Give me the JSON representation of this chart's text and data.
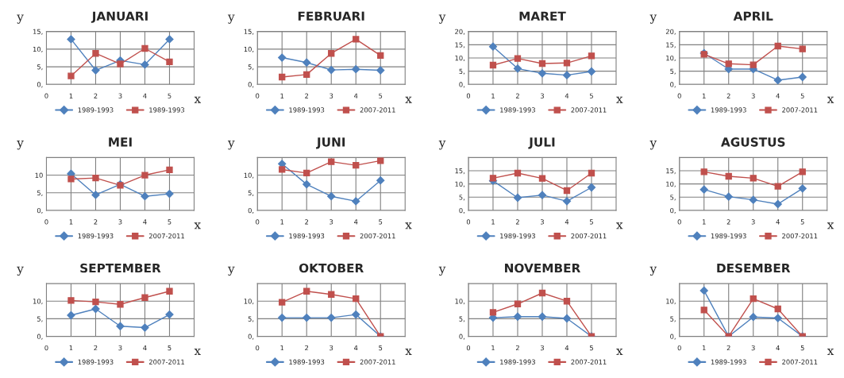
{
  "chart_data": [
    {
      "type": "line",
      "title": "JANUARI",
      "xlabel": "x",
      "ylabel": "y",
      "x": [
        1,
        2,
        3,
        4,
        5
      ],
      "xlim": [
        0,
        6
      ],
      "xticks": [
        0,
        1,
        2,
        3,
        4,
        5
      ],
      "ylim": [
        0,
        15
      ],
      "yticks": [
        {
          "value": 0,
          "label": "0,"
        },
        {
          "value": 5,
          "label": "5,"
        },
        {
          "value": 10,
          "label": "10,"
        },
        {
          "value": 15,
          "label": "15,"
        }
      ],
      "grid": true,
      "legend": "bottom",
      "series": [
        {
          "name": "1989-1993",
          "color": "#4f81bd",
          "marker": "diamond",
          "values": [
            12.8,
            4.0,
            6.8,
            5.6,
            12.8
          ]
        },
        {
          "name": "1989-1993",
          "color": "#c0504d",
          "marker": "square",
          "values": [
            2.4,
            8.8,
            5.8,
            10.2,
            6.4
          ]
        }
      ]
    },
    {
      "type": "line",
      "title": "FEBRUARI",
      "xlabel": "x",
      "ylabel": "y",
      "x": [
        1,
        2,
        3,
        4,
        5
      ],
      "xlim": [
        0,
        6
      ],
      "xticks": [
        0,
        1,
        2,
        3,
        4,
        5
      ],
      "ylim": [
        0,
        15
      ],
      "yticks": [
        {
          "value": 0,
          "label": "0,"
        },
        {
          "value": 5,
          "label": "5,"
        },
        {
          "value": 10,
          "label": "10,"
        },
        {
          "value": 15,
          "label": "15,"
        }
      ],
      "grid": true,
      "legend": "bottom",
      "series": [
        {
          "name": "1989-1993",
          "color": "#4f81bd",
          "marker": "diamond",
          "values": [
            7.6,
            6.2,
            4.1,
            4.3,
            4.0
          ]
        },
        {
          "name": "2007-2011",
          "color": "#c0504d",
          "marker": "square",
          "values": [
            2.1,
            2.8,
            8.8,
            12.8,
            8.2
          ]
        }
      ]
    },
    {
      "type": "line",
      "title": "MARET",
      "xlabel": "x",
      "ylabel": "y",
      "x": [
        1,
        2,
        3,
        4,
        5
      ],
      "xlim": [
        0,
        6
      ],
      "xticks": [
        0,
        1,
        2,
        3,
        4,
        5
      ],
      "ylim": [
        0,
        20
      ],
      "yticks": [
        {
          "value": 0,
          "label": "0,"
        },
        {
          "value": 5,
          "label": "5,"
        },
        {
          "value": 10,
          "label": "10,"
        },
        {
          "value": 15,
          "label": "15,"
        },
        {
          "value": 20,
          "label": "20,"
        }
      ],
      "grid": true,
      "legend": "bottom",
      "series": [
        {
          "name": "1989-1993",
          "color": "#4f81bd",
          "marker": "diamond",
          "values": [
            14.3,
            6.0,
            4.2,
            3.5,
            4.9
          ]
        },
        {
          "name": "2007-2011",
          "color": "#c0504d",
          "marker": "square",
          "values": [
            7.3,
            9.8,
            7.9,
            8.1,
            10.8
          ]
        }
      ]
    },
    {
      "type": "line",
      "title": "APRIL",
      "xlabel": "x",
      "ylabel": "y",
      "x": [
        1,
        2,
        3,
        4,
        5
      ],
      "xlim": [
        0,
        6
      ],
      "xticks": [
        0,
        1,
        2,
        3,
        4,
        5
      ],
      "ylim": [
        0,
        20
      ],
      "yticks": [
        {
          "value": 0,
          "label": "0,"
        },
        {
          "value": 5,
          "label": "5,"
        },
        {
          "value": 10,
          "label": "10,"
        },
        {
          "value": 15,
          "label": "15,"
        },
        {
          "value": 20,
          "label": "20,"
        }
      ],
      "grid": true,
      "legend": "bottom",
      "series": [
        {
          "name": "1989-1993",
          "color": "#4f81bd",
          "marker": "diamond",
          "values": [
            11.8,
            5.8,
            5.8,
            1.6,
            2.8
          ]
        },
        {
          "name": "2007-2011",
          "color": "#c0504d",
          "marker": "square",
          "values": [
            11.4,
            7.8,
            7.4,
            14.5,
            13.4
          ]
        }
      ]
    },
    {
      "type": "line",
      "title": "MEI",
      "xlabel": "x",
      "ylabel": "y",
      "x": [
        1,
        2,
        3,
        4,
        5
      ],
      "xlim": [
        0,
        6
      ],
      "xticks": [
        0,
        1,
        2,
        3,
        4,
        5
      ],
      "ylim": [
        0,
        15
      ],
      "yticks": [
        {
          "value": 0,
          "label": "0,"
        },
        {
          "value": 5,
          "label": "5,"
        },
        {
          "value": 10,
          "label": "10"
        },
        {
          "value": 15,
          "label": null
        }
      ],
      "grid": true,
      "legend": "bottom",
      "series": [
        {
          "name": "1989-1993",
          "color": "#4f81bd",
          "marker": "diamond",
          "values": [
            10.4,
            4.4,
            7.4,
            4.0,
            4.7
          ]
        },
        {
          "name": "2007-2011",
          "color": "#c0504d",
          "marker": "square",
          "values": [
            8.9,
            9.2,
            7.1,
            10.0,
            11.5
          ]
        }
      ]
    },
    {
      "type": "line",
      "title": "JUNI",
      "xlabel": "x",
      "ylabel": "y",
      "x": [
        1,
        2,
        3,
        4,
        5
      ],
      "xlim": [
        0,
        6
      ],
      "xticks": [
        0,
        1,
        2,
        3,
        4,
        5
      ],
      "ylim": [
        0,
        15
      ],
      "yticks": [
        {
          "value": 0,
          "label": "0,"
        },
        {
          "value": 5,
          "label": "5,"
        },
        {
          "value": 10,
          "label": "10,"
        },
        {
          "value": 15,
          "label": null
        }
      ],
      "grid": true,
      "legend": "bottom",
      "series": [
        {
          "name": "1989-1993",
          "color": "#4f81bd",
          "marker": "diamond",
          "values": [
            13.2,
            7.4,
            4.0,
            2.6,
            8.5
          ]
        },
        {
          "name": "2007-2011",
          "color": "#c0504d",
          "marker": "square",
          "values": [
            11.6,
            10.6,
            13.8,
            12.8,
            14.1
          ]
        }
      ]
    },
    {
      "type": "line",
      "title": "JULI",
      "xlabel": "x",
      "ylabel": "y",
      "x": [
        1,
        2,
        3,
        4,
        5
      ],
      "xlim": [
        0,
        6
      ],
      "xticks": [
        0,
        1,
        2,
        3,
        4,
        5
      ],
      "ylim": [
        0,
        20
      ],
      "yticks": [
        {
          "value": 0,
          "label": "0,"
        },
        {
          "value": 5,
          "label": "5,"
        },
        {
          "value": 10,
          "label": "10,"
        },
        {
          "value": 15,
          "label": "15,"
        },
        {
          "value": 20,
          "label": null
        }
      ],
      "grid": true,
      "legend": "bottom",
      "series": [
        {
          "name": "1989-1993",
          "color": "#4f81bd",
          "marker": "diamond",
          "values": [
            11.2,
            4.8,
            5.8,
            3.5,
            8.7
          ]
        },
        {
          "name": "2007-2011",
          "color": "#c0504d",
          "marker": "square",
          "values": [
            12.2,
            14.1,
            12.1,
            7.5,
            14.1
          ]
        }
      ]
    },
    {
      "type": "line",
      "title": "AGUSTUS",
      "xlabel": "x",
      "ylabel": "y",
      "x": [
        1,
        2,
        3,
        4,
        5
      ],
      "xlim": [
        0,
        6
      ],
      "xticks": [
        0,
        1,
        2,
        3,
        4,
        5
      ],
      "ylim": [
        0,
        20
      ],
      "yticks": [
        {
          "value": 0,
          "label": "0,"
        },
        {
          "value": 5,
          "label": "5,"
        },
        {
          "value": 10,
          "label": "10,"
        },
        {
          "value": 15,
          "label": "15,"
        },
        {
          "value": 20,
          "label": null
        }
      ],
      "grid": true,
      "legend": "bottom",
      "series": [
        {
          "name": "1989-1993",
          "color": "#4f81bd",
          "marker": "diamond",
          "values": [
            7.9,
            5.2,
            4.0,
            2.4,
            8.3
          ]
        },
        {
          "name": "2007-2011",
          "color": "#c0504d",
          "marker": "square",
          "values": [
            14.6,
            12.9,
            12.2,
            9.1,
            14.6
          ]
        }
      ]
    },
    {
      "type": "line",
      "title": "SEPTEMBER",
      "xlabel": "x",
      "ylabel": "y",
      "x": [
        1,
        2,
        3,
        4,
        5
      ],
      "xlim": [
        0,
        6
      ],
      "xticks": [
        0,
        1,
        2,
        3,
        4,
        5
      ],
      "ylim": [
        0,
        15
      ],
      "yticks": [
        {
          "value": 0,
          "label": "0,"
        },
        {
          "value": 5,
          "label": "5,"
        },
        {
          "value": 10,
          "label": "10,"
        },
        {
          "value": 15,
          "label": null
        }
      ],
      "grid": true,
      "legend": "bottom",
      "series": [
        {
          "name": "1989-1993",
          "color": "#4f81bd",
          "marker": "diamond",
          "values": [
            6.0,
            7.8,
            2.9,
            2.5,
            6.2
          ]
        },
        {
          "name": "2007-2011",
          "color": "#c0504d",
          "marker": "square",
          "values": [
            10.2,
            9.8,
            9.1,
            11.0,
            12.8
          ]
        }
      ]
    },
    {
      "type": "line",
      "title": "OKTOBER",
      "xlabel": "x",
      "ylabel": "y",
      "x": [
        1,
        2,
        3,
        4,
        5
      ],
      "xlim": [
        0,
        6
      ],
      "xticks": [
        0,
        1,
        2,
        3,
        4,
        5
      ],
      "ylim": [
        0,
        15
      ],
      "yticks": [
        {
          "value": 0,
          "label": "0,"
        },
        {
          "value": 5,
          "label": "5,"
        },
        {
          "value": 10,
          "label": "10,"
        },
        {
          "value": 15,
          "label": null
        }
      ],
      "grid": true,
      "legend": "bottom",
      "series": [
        {
          "name": "1989-1993",
          "color": "#4f81bd",
          "marker": "diamond",
          "values": [
            5.3,
            5.3,
            5.3,
            6.2,
            0
          ]
        },
        {
          "name": "2007-2011",
          "color": "#c0504d",
          "marker": "square",
          "values": [
            9.7,
            12.8,
            11.9,
            10.7,
            0
          ]
        }
      ]
    },
    {
      "type": "line",
      "title": "NOVEMBER",
      "xlabel": "x",
      "ylabel": "y",
      "x": [
        1,
        2,
        3,
        4,
        5
      ],
      "xlim": [
        0,
        6
      ],
      "xticks": [
        0,
        1,
        2,
        3,
        4,
        5
      ],
      "ylim": [
        0,
        15
      ],
      "yticks": [
        {
          "value": 0,
          "label": "0,"
        },
        {
          "value": 5,
          "label": "5,"
        },
        {
          "value": 10,
          "label": "10,"
        },
        {
          "value": 15,
          "label": null
        }
      ],
      "grid": true,
      "legend": "bottom",
      "series": [
        {
          "name": "1989-1993",
          "color": "#4f81bd",
          "marker": "diamond",
          "values": [
            5.3,
            5.6,
            5.6,
            5.1,
            0
          ]
        },
        {
          "name": "2007-2011",
          "color": "#c0504d",
          "marker": "square",
          "values": [
            6.8,
            9.2,
            12.3,
            10.0,
            0
          ]
        }
      ]
    },
    {
      "type": "line",
      "title": "DESEMBER",
      "xlabel": "x",
      "ylabel": "y",
      "x": [
        1,
        2,
        3,
        4,
        5
      ],
      "xlim": [
        0,
        6
      ],
      "xticks": [
        0,
        1,
        2,
        3,
        4,
        5
      ],
      "ylim": [
        0,
        15
      ],
      "yticks": [
        {
          "value": 0,
          "label": "0,"
        },
        {
          "value": 5,
          "label": "5,"
        },
        {
          "value": 10,
          "label": "10,"
        },
        {
          "value": 15,
          "label": null
        }
      ],
      "grid": true,
      "legend": "bottom",
      "series": [
        {
          "name": "1989-1993",
          "color": "#4f81bd",
          "marker": "diamond",
          "values": [
            13.0,
            0,
            5.5,
            5.2,
            0
          ]
        },
        {
          "name": "2007-2011",
          "color": "#c0504d",
          "marker": "square",
          "values": [
            7.5,
            0,
            10.7,
            7.8,
            0
          ]
        }
      ]
    }
  ]
}
